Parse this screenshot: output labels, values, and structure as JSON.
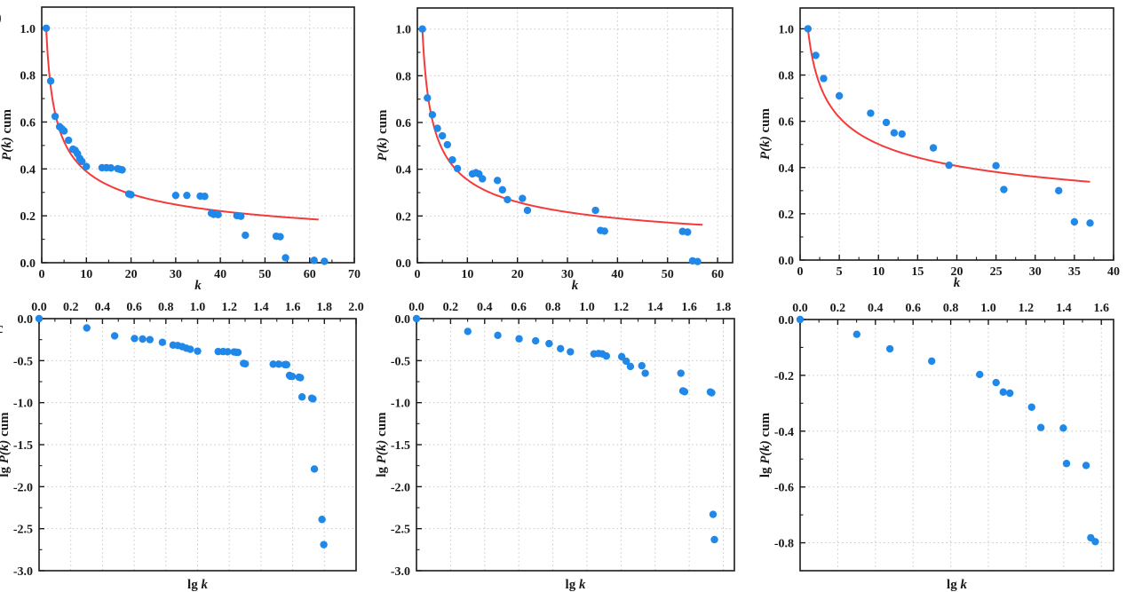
{
  "figure": {
    "background": "#ffffff",
    "point_color": "#1f88e8",
    "fit_color": "#f43b3b",
    "grid_color": "#c7c7c7",
    "axis_color": "#1a1a1a"
  },
  "crop_fragments": {
    "top": ")",
    "bottom": "c"
  },
  "chart_data": [
    {
      "id": "top-left",
      "type": "scatter",
      "xaxis_side": "bottom",
      "grid": true,
      "xlabel": [
        {
          "text": "k",
          "italic": true
        }
      ],
      "ylabel": [
        {
          "text": "P(k)",
          "italic": true
        },
        {
          "text": " cum",
          "italic": false
        }
      ],
      "xlim": [
        0,
        70
      ],
      "ylim": [
        0,
        1.09
      ],
      "xticks": [
        0,
        10,
        20,
        30,
        40,
        50,
        60,
        70
      ],
      "xtick_labels": [
        "0",
        "10",
        "20",
        "30",
        "40",
        "50",
        "60",
        "70"
      ],
      "x_minor_step": 5,
      "yticks": [
        0,
        0.2,
        0.4,
        0.6,
        0.8,
        1.0
      ],
      "ytick_labels": [
        "0.0",
        "0.2",
        "0.4",
        "0.6",
        "0.8",
        "1.0"
      ],
      "y_minor_step": 0.1,
      "fit": {
        "type": "power-law",
        "formula": "P(k)=k^-0.41",
        "exponent": 0.41,
        "x_start": 1,
        "x_end": 62
      },
      "points": [
        [
          1,
          1.0
        ],
        [
          2,
          0.775
        ],
        [
          3,
          0.624
        ],
        [
          4,
          0.58
        ],
        [
          4.5,
          0.571
        ],
        [
          5,
          0.562
        ],
        [
          6,
          0.522
        ],
        [
          7,
          0.484
        ],
        [
          7.5,
          0.479
        ],
        [
          8,
          0.465
        ],
        [
          8.5,
          0.445
        ],
        [
          9,
          0.432
        ],
        [
          10,
          0.41
        ],
        [
          13.5,
          0.405
        ],
        [
          14.5,
          0.405
        ],
        [
          15.5,
          0.404
        ],
        [
          17,
          0.401
        ],
        [
          17.5,
          0.398
        ],
        [
          18,
          0.396
        ],
        [
          19.5,
          0.293
        ],
        [
          20,
          0.29
        ],
        [
          30,
          0.287
        ],
        [
          32.5,
          0.287
        ],
        [
          35.5,
          0.284
        ],
        [
          36.5,
          0.283
        ],
        [
          38,
          0.211
        ],
        [
          38.5,
          0.206
        ],
        [
          39.5,
          0.205
        ],
        [
          43.7,
          0.201
        ],
        [
          44.6,
          0.198
        ],
        [
          45.6,
          0.117
        ],
        [
          52.5,
          0.113
        ],
        [
          53.4,
          0.111
        ],
        [
          54.6,
          0.021
        ],
        [
          61,
          0.01
        ],
        [
          63.3,
          0.006
        ]
      ]
    },
    {
      "id": "top-middle",
      "type": "scatter",
      "xaxis_side": "bottom",
      "grid": true,
      "xlabel": [
        {
          "text": "k",
          "italic": true
        }
      ],
      "ylabel": [
        {
          "text": "P(k)",
          "italic": true
        },
        {
          "text": " cum",
          "italic": false
        }
      ],
      "xlim": [
        0,
        63
      ],
      "ylim": [
        0,
        1.09
      ],
      "xticks": [
        0,
        10,
        20,
        30,
        40,
        50,
        60
      ],
      "xtick_labels": [
        "0",
        "10",
        "20",
        "30",
        "40",
        "50",
        "60"
      ],
      "x_minor_step": 5,
      "yticks": [
        0,
        0.2,
        0.4,
        0.6,
        0.8,
        1.0
      ],
      "ytick_labels": [
        "0.0",
        "0.2",
        "0.4",
        "0.6",
        "0.8",
        "1.0"
      ],
      "y_minor_step": 0.1,
      "fit": {
        "type": "power-law",
        "formula": "P(k)=k^-0.45",
        "exponent": 0.45,
        "x_start": 1,
        "x_end": 57
      },
      "points": [
        [
          1,
          1.0
        ],
        [
          2,
          0.705
        ],
        [
          3,
          0.633
        ],
        [
          4,
          0.575
        ],
        [
          5,
          0.543
        ],
        [
          6,
          0.505
        ],
        [
          7,
          0.44
        ],
        [
          8,
          0.403
        ],
        [
          11,
          0.38
        ],
        [
          11.7,
          0.385
        ],
        [
          12.3,
          0.38
        ],
        [
          13,
          0.359
        ],
        [
          16,
          0.352
        ],
        [
          17,
          0.312
        ],
        [
          18,
          0.27
        ],
        [
          21,
          0.275
        ],
        [
          22,
          0.224
        ],
        [
          35.6,
          0.224
        ],
        [
          36.6,
          0.138
        ],
        [
          37.4,
          0.135
        ],
        [
          53,
          0.134
        ],
        [
          54,
          0.131
        ],
        [
          55,
          0.008
        ],
        [
          56,
          0.005
        ]
      ]
    },
    {
      "id": "top-right",
      "type": "scatter",
      "xaxis_side": "bottom",
      "grid": true,
      "xlabel": [
        {
          "text": "k",
          "italic": true
        }
      ],
      "ylabel": [
        {
          "text": "P(k)",
          "italic": true
        },
        {
          "text": " cum",
          "italic": false
        }
      ],
      "xlim": [
        0,
        40
      ],
      "ylim": [
        0,
        1.09
      ],
      "xticks": [
        0,
        5,
        10,
        15,
        20,
        25,
        30,
        35,
        40
      ],
      "xtick_labels": [
        "0",
        "5",
        "10",
        "15",
        "20",
        "25",
        "30",
        "35",
        "40"
      ],
      "x_minor_step": 2.5,
      "yticks": [
        0,
        0.2,
        0.4,
        0.6,
        0.8,
        1.0
      ],
      "ytick_labels": [
        "0.0",
        "0.2",
        "0.4",
        "0.6",
        "0.8",
        "1.0"
      ],
      "y_minor_step": 0.1,
      "fit": {
        "type": "power-law",
        "formula": "P(k)=k^-0.30",
        "exponent": 0.3,
        "x_start": 1,
        "x_end": 37
      },
      "points": [
        [
          1,
          1.0
        ],
        [
          2,
          0.885
        ],
        [
          3,
          0.785
        ],
        [
          5,
          0.71
        ],
        [
          9,
          0.635
        ],
        [
          11,
          0.595
        ],
        [
          12,
          0.55
        ],
        [
          13,
          0.545
        ],
        [
          17,
          0.485
        ],
        [
          19,
          0.41
        ],
        [
          25,
          0.408
        ],
        [
          26,
          0.305
        ],
        [
          33,
          0.3
        ],
        [
          35,
          0.165
        ],
        [
          37,
          0.16
        ]
      ]
    },
    {
      "id": "bottom-left",
      "type": "scatter",
      "xaxis_side": "top",
      "grid": true,
      "xlabel": [
        {
          "text": "lg ",
          "italic": false
        },
        {
          "text": "k",
          "italic": true
        }
      ],
      "ylabel": [
        {
          "text": "lg ",
          "italic": false
        },
        {
          "text": "P(k)",
          "italic": true
        },
        {
          "text": " cum",
          "italic": false
        }
      ],
      "xlim": [
        0,
        2.0
      ],
      "ylim": [
        -3.0,
        0
      ],
      "xticks": [
        0,
        0.2,
        0.4,
        0.6,
        0.8,
        1.0,
        1.2,
        1.4,
        1.6,
        1.8,
        2.0
      ],
      "xtick_labels": [
        "0.0",
        "0.2",
        "0.4",
        "0.6",
        "0.8",
        "1.0",
        "1.2",
        "1.4",
        "1.6",
        "1.8",
        "2.0"
      ],
      "x_minor_step": 0.1,
      "yticks": [
        0,
        -0.5,
        -1.0,
        -1.5,
        -2.0,
        -2.5,
        -3.0
      ],
      "ytick_labels": [
        "0.0",
        "-0.5",
        "-1.0",
        "-1.5",
        "-2.0",
        "-2.5",
        "-3.0"
      ],
      "y_minor_step": 0.25,
      "fit": null,
      "points": [
        [
          0,
          0
        ],
        [
          0.301,
          -0.111
        ],
        [
          0.477,
          -0.205
        ],
        [
          0.602,
          -0.237
        ],
        [
          0.653,
          -0.243
        ],
        [
          0.699,
          -0.25
        ],
        [
          0.778,
          -0.282
        ],
        [
          0.845,
          -0.315
        ],
        [
          0.875,
          -0.32
        ],
        [
          0.903,
          -0.333
        ],
        [
          0.929,
          -0.352
        ],
        [
          0.954,
          -0.365
        ],
        [
          1.0,
          -0.387
        ],
        [
          1.13,
          -0.392
        ],
        [
          1.161,
          -0.392
        ],
        [
          1.19,
          -0.394
        ],
        [
          1.23,
          -0.397
        ],
        [
          1.243,
          -0.4
        ],
        [
          1.255,
          -0.402
        ],
        [
          1.29,
          -0.533
        ],
        [
          1.301,
          -0.538
        ],
        [
          1.477,
          -0.542
        ],
        [
          1.512,
          -0.542
        ],
        [
          1.55,
          -0.547
        ],
        [
          1.562,
          -0.548
        ],
        [
          1.58,
          -0.676
        ],
        [
          1.585,
          -0.686
        ],
        [
          1.597,
          -0.688
        ],
        [
          1.64,
          -0.697
        ],
        [
          1.649,
          -0.703
        ],
        [
          1.659,
          -0.932
        ],
        [
          1.72,
          -0.947
        ],
        [
          1.728,
          -0.955
        ],
        [
          1.737,
          -1.79
        ],
        [
          1.785,
          -2.39
        ],
        [
          1.796,
          -2.69
        ]
      ]
    },
    {
      "id": "bottom-middle",
      "type": "scatter",
      "xaxis_side": "top",
      "grid": true,
      "xlabel": [
        {
          "text": "lg ",
          "italic": false
        },
        {
          "text": "k",
          "italic": true
        }
      ],
      "ylabel": [
        {
          "text": "lg ",
          "italic": false
        },
        {
          "text": "P(k)",
          "italic": true
        },
        {
          "text": " cum",
          "italic": false
        }
      ],
      "xlim": [
        0,
        1.865
      ],
      "ylim": [
        -3.0,
        0
      ],
      "xticks": [
        0,
        0.2,
        0.4,
        0.6,
        0.8,
        1.0,
        1.2,
        1.4,
        1.6,
        1.8
      ],
      "xtick_labels": [
        "0.0",
        "0.2",
        "0.4",
        "0.6",
        "0.8",
        "1.0",
        "1.2",
        "1.4",
        "1.6",
        "1.8"
      ],
      "x_minor_step": 0.1,
      "yticks": [
        0,
        -0.5,
        -1.0,
        -1.5,
        -2.0,
        -2.5,
        -3.0
      ],
      "ytick_labels": [
        "0.0",
        "-0.5",
        "-1.0",
        "-1.5",
        "-2.0",
        "-2.5",
        "-3.0"
      ],
      "y_minor_step": 0.25,
      "fit": null,
      "points": [
        [
          0,
          0
        ],
        [
          0.301,
          -0.152
        ],
        [
          0.477,
          -0.199
        ],
        [
          0.602,
          -0.24
        ],
        [
          0.699,
          -0.265
        ],
        [
          0.778,
          -0.297
        ],
        [
          0.845,
          -0.357
        ],
        [
          0.903,
          -0.395
        ],
        [
          1.041,
          -0.42
        ],
        [
          1.068,
          -0.415
        ],
        [
          1.09,
          -0.42
        ],
        [
          1.114,
          -0.445
        ],
        [
          1.204,
          -0.453
        ],
        [
          1.23,
          -0.506
        ],
        [
          1.255,
          -0.569
        ],
        [
          1.322,
          -0.561
        ],
        [
          1.342,
          -0.65
        ],
        [
          1.551,
          -0.65
        ],
        [
          1.563,
          -0.86
        ],
        [
          1.573,
          -0.87
        ],
        [
          1.724,
          -0.873
        ],
        [
          1.732,
          -0.883
        ],
        [
          1.74,
          -2.33
        ],
        [
          1.748,
          -2.63
        ]
      ]
    },
    {
      "id": "bottom-right",
      "type": "scatter",
      "xaxis_side": "top",
      "grid": true,
      "xlabel": [
        {
          "text": "lg ",
          "italic": false
        },
        {
          "text": "k",
          "italic": true
        }
      ],
      "ylabel": [
        {
          "text": "lg ",
          "italic": false
        },
        {
          "text": "P(k)",
          "italic": true
        },
        {
          "text": " cum",
          "italic": false
        }
      ],
      "xlim": [
        0,
        1.665
      ],
      "ylim": [
        -0.9,
        0
      ],
      "xticks": [
        0,
        0.2,
        0.4,
        0.6,
        0.8,
        1.0,
        1.2,
        1.4,
        1.6
      ],
      "xtick_labels": [
        "0.0",
        "0.2",
        "0.4",
        "0.6",
        "0.8",
        "1.0",
        "1.2",
        "1.4",
        "1.6"
      ],
      "x_minor_step": 0.1,
      "yticks": [
        0,
        -0.2,
        -0.4,
        -0.6,
        -0.8
      ],
      "ytick_labels": [
        "0.0",
        "-0.2",
        "-0.4",
        "-0.6",
        "-0.8"
      ],
      "y_minor_step": 0.1,
      "fit": null,
      "points": [
        [
          0,
          0
        ],
        [
          0.301,
          -0.053
        ],
        [
          0.477,
          -0.105
        ],
        [
          0.699,
          -0.149
        ],
        [
          0.954,
          -0.197
        ],
        [
          1.041,
          -0.226
        ],
        [
          1.079,
          -0.26
        ],
        [
          1.114,
          -0.264
        ],
        [
          1.23,
          -0.314
        ],
        [
          1.279,
          -0.387
        ],
        [
          1.398,
          -0.389
        ],
        [
          1.415,
          -0.516
        ],
        [
          1.519,
          -0.523
        ],
        [
          1.544,
          -0.782
        ],
        [
          1.568,
          -0.796
        ]
      ]
    }
  ]
}
